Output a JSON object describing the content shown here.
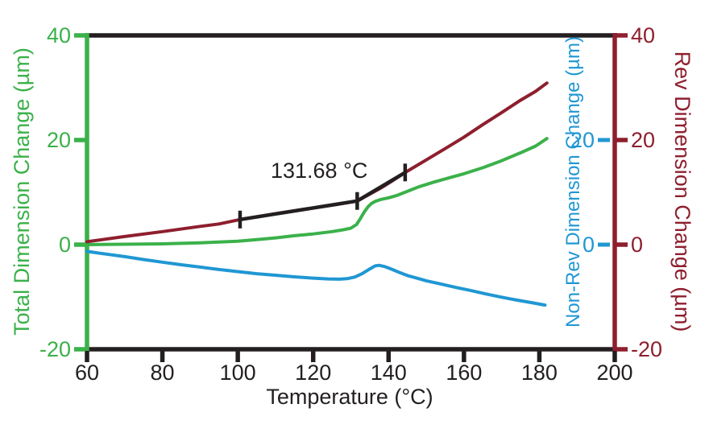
{
  "chart_data": {
    "type": "line",
    "xlabel": "Temperature (°C)",
    "xlim": [
      60,
      200
    ],
    "grid": false,
    "legend": "none",
    "annotation": {
      "text": "131.68 °C",
      "x": 121.6,
      "y": 14.2
    },
    "axes": {
      "bottom": {
        "color": "#231f20",
        "ticks": [
          60,
          80,
          100,
          120,
          140,
          160,
          180,
          200
        ],
        "lim": [
          60,
          200
        ]
      },
      "left": {
        "label": "Total Dimension Change (µm)",
        "color": "#3bb14a",
        "ticks": [
          40,
          20,
          0,
          -20
        ],
        "lim": [
          -20,
          40
        ]
      },
      "right": {
        "label": "Rev Dimension Change (µm)",
        "color": "#8e1f2e",
        "ticks": [
          40,
          20,
          0,
          -20
        ],
        "lim": [
          -20,
          40
        ]
      },
      "inner_right": {
        "label": "Non-Rev Dimension Change (µm)",
        "color": "#2097d3",
        "ticks": [
          20,
          0
        ],
        "lim": [
          -20,
          40
        ]
      }
    },
    "series": [
      {
        "name": "Total Dimension Change",
        "color": "#3bb14a",
        "points": [
          [
            60,
            0
          ],
          [
            70,
            0.08
          ],
          [
            80,
            0.16
          ],
          [
            85,
            0.25
          ],
          [
            90,
            0.35
          ],
          [
            95,
            0.5
          ],
          [
            100,
            0.65
          ],
          [
            105,
            0.95
          ],
          [
            110,
            1.3
          ],
          [
            115,
            1.7
          ],
          [
            120,
            2.05
          ],
          [
            125,
            2.5
          ],
          [
            128,
            2.85
          ],
          [
            130,
            3.15
          ],
          [
            131.5,
            3.85
          ],
          [
            132.5,
            4.95
          ],
          [
            133.5,
            6.2
          ],
          [
            134.5,
            7.2
          ],
          [
            135.5,
            7.9
          ],
          [
            136.5,
            8.3
          ],
          [
            138,
            8.65
          ],
          [
            140,
            8.95
          ],
          [
            142,
            9.35
          ],
          [
            145,
            10.2
          ],
          [
            148,
            11.05
          ],
          [
            152,
            11.95
          ],
          [
            156,
            12.75
          ],
          [
            160,
            13.55
          ],
          [
            165,
            14.7
          ],
          [
            170,
            16.05
          ],
          [
            175,
            17.55
          ],
          [
            179,
            18.85
          ],
          [
            182,
            20.3
          ]
        ]
      },
      {
        "name": "Non-Rev Dimension Change",
        "color": "#2097d3",
        "points": [
          [
            60,
            -1.3
          ],
          [
            65,
            -1.8
          ],
          [
            70,
            -2.3
          ],
          [
            75,
            -2.85
          ],
          [
            80,
            -3.35
          ],
          [
            85,
            -3.85
          ],
          [
            90,
            -4.3
          ],
          [
            95,
            -4.75
          ],
          [
            100,
            -5.15
          ],
          [
            105,
            -5.55
          ],
          [
            110,
            -5.85
          ],
          [
            115,
            -6.15
          ],
          [
            120,
            -6.4
          ],
          [
            124,
            -6.55
          ],
          [
            127,
            -6.6
          ],
          [
            129,
            -6.5
          ],
          [
            131,
            -6.2
          ],
          [
            133,
            -5.55
          ],
          [
            135,
            -4.65
          ],
          [
            136.5,
            -4.05
          ],
          [
            137.5,
            -3.95
          ],
          [
            139,
            -4.2
          ],
          [
            141,
            -4.75
          ],
          [
            143,
            -5.35
          ],
          [
            145,
            -5.9
          ],
          [
            147,
            -6.3
          ],
          [
            150,
            -6.9
          ],
          [
            154,
            -7.55
          ],
          [
            158,
            -8.2
          ],
          [
            162,
            -8.8
          ],
          [
            166,
            -9.45
          ],
          [
            170,
            -10.05
          ],
          [
            174,
            -10.6
          ],
          [
            178,
            -11.1
          ],
          [
            181.5,
            -11.55
          ]
        ]
      },
      {
        "name": "Rev Dimension Change",
        "color": "#8e1f2e",
        "points": [
          [
            60,
            0.55
          ],
          [
            70,
            1.55
          ],
          [
            80,
            2.5
          ],
          [
            90,
            3.5
          ],
          [
            95,
            3.95
          ],
          [
            100.6,
            4.8
          ],
          [
            105,
            5.3
          ],
          [
            110,
            5.9
          ],
          [
            115,
            6.45
          ],
          [
            120,
            7.0
          ],
          [
            126,
            7.65
          ],
          [
            131.68,
            8.35
          ],
          [
            135,
            9.65
          ],
          [
            138,
            10.85
          ],
          [
            141,
            12.2
          ],
          [
            144.4,
            13.8
          ],
          [
            150,
            16.2
          ],
          [
            155,
            18.35
          ],
          [
            160,
            20.55
          ],
          [
            165,
            22.95
          ],
          [
            170,
            25.25
          ],
          [
            175,
            27.6
          ],
          [
            179,
            29.3
          ],
          [
            182,
            30.9
          ]
        ]
      },
      {
        "name": "transition-analysis-line",
        "color": "#231f20",
        "marker": "tick",
        "points": [
          [
            100.6,
            4.8
          ],
          [
            131.68,
            8.35
          ],
          [
            144.4,
            13.8
          ]
        ]
      }
    ]
  }
}
